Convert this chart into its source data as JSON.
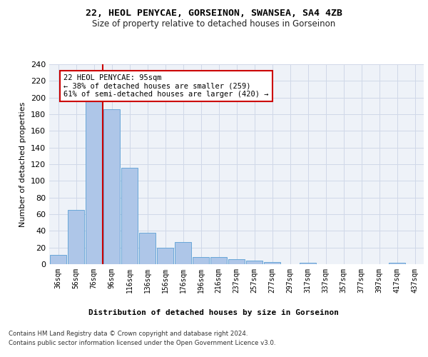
{
  "title": "22, HEOL PENYCAE, GORSEINON, SWANSEA, SA4 4ZB",
  "subtitle": "Size of property relative to detached houses in Gorseinon",
  "xlabel_bottom": "Distribution of detached houses by size in Gorseinon",
  "ylabel": "Number of detached properties",
  "categories": [
    "36sqm",
    "56sqm",
    "76sqm",
    "96sqm",
    "116sqm",
    "136sqm",
    "156sqm",
    "176sqm",
    "196sqm",
    "216sqm",
    "237sqm",
    "257sqm",
    "277sqm",
    "297sqm",
    "317sqm",
    "337sqm",
    "357sqm",
    "377sqm",
    "397sqm",
    "417sqm",
    "437sqm"
  ],
  "values": [
    11,
    65,
    200,
    186,
    116,
    38,
    20,
    27,
    9,
    9,
    6,
    4,
    3,
    0,
    2,
    0,
    0,
    0,
    0,
    2,
    0
  ],
  "bar_color": "#aec6e8",
  "bar_edge_color": "#5a9fd4",
  "grid_color": "#d0d8e8",
  "annotation_text": "22 HEOL PENYCAE: 95sqm\n← 38% of detached houses are smaller (259)\n61% of semi-detached houses are larger (420) →",
  "annotation_box_color": "#ffffff",
  "annotation_box_edge": "#cc0000",
  "annotation_text_color": "#000000",
  "vline_color": "#cc0000",
  "footer_line1": "Contains HM Land Registry data © Crown copyright and database right 2024.",
  "footer_line2": "Contains public sector information licensed under the Open Government Licence v3.0.",
  "ylim": [
    0,
    240
  ],
  "yticks": [
    0,
    20,
    40,
    60,
    80,
    100,
    120,
    140,
    160,
    180,
    200,
    220,
    240
  ],
  "bg_color": "#eef2f8",
  "fig_bg_color": "#ffffff"
}
